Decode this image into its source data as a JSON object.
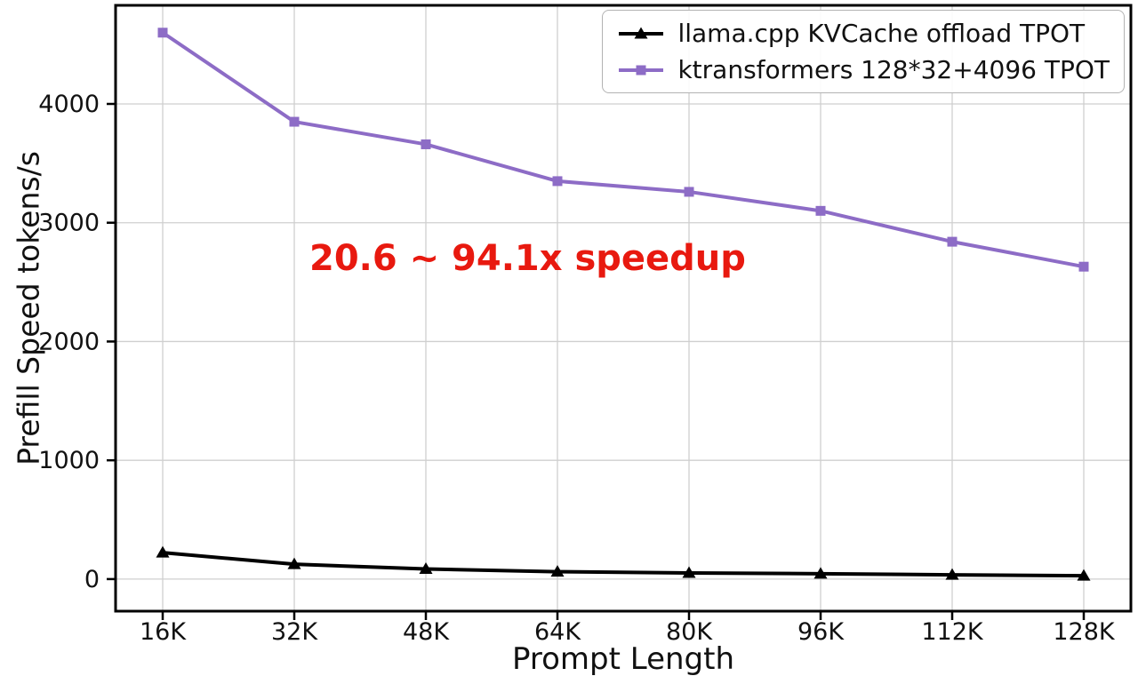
{
  "chart_data": {
    "type": "line",
    "title": "",
    "xlabel": "Prompt Length",
    "ylabel": "Prefill Speed tokens/s",
    "categories": [
      "16K",
      "32K",
      "48K",
      "64K",
      "80K",
      "96K",
      "112K",
      "128K"
    ],
    "y_ticks": [
      0,
      1000,
      2000,
      3000,
      4000
    ],
    "ylim": [
      -270,
      4830
    ],
    "grid": true,
    "grid_color": "#cfcfcf",
    "legend_position": "upper right",
    "series": [
      {
        "name": "llama.cpp KVCache offload TPOT",
        "color": "#000000",
        "marker": "triangle",
        "values": [
          223,
          125,
          85,
          62,
          52,
          45,
          36,
          28
        ]
      },
      {
        "name": "ktransformers 128*32+4096 TPOT",
        "color": "#8d6cc6",
        "marker": "square",
        "values": [
          4600,
          3850,
          3660,
          3350,
          3260,
          3100,
          2840,
          2630
        ]
      }
    ],
    "annotation": {
      "text": "20.6 ~ 94.1x speedup",
      "color": "#e8190f"
    }
  }
}
